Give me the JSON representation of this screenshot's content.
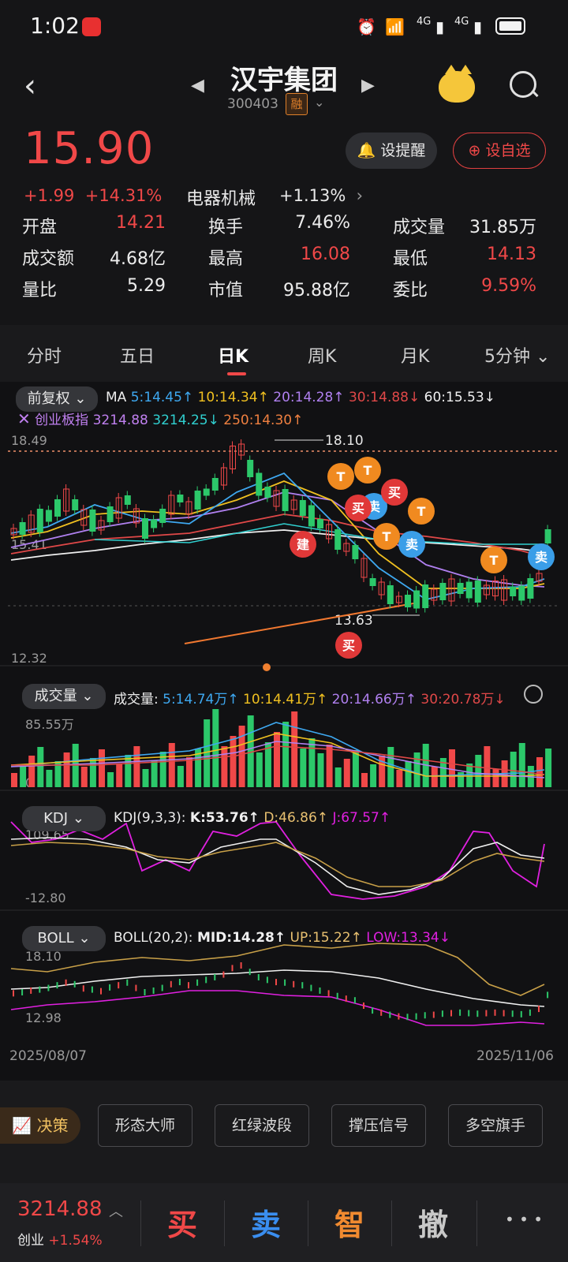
{
  "status_bar": {
    "time": "1:02",
    "network_1": "4G",
    "network_2": "4G"
  },
  "header": {
    "title": "汉宇集团",
    "code": "300403",
    "tag": "融"
  },
  "quote": {
    "price": "15.90",
    "change": "+1.99",
    "change_pct": "+14.31%",
    "sector": "电器机械",
    "sector_change": "+1.13%",
    "remind_label": "设提醒",
    "add_fav_label": "设自选",
    "stats": [
      {
        "label": "开盘",
        "value": "14.21",
        "color": "red"
      },
      {
        "label": "换手",
        "value": "7.46%",
        "color": "white"
      },
      {
        "label": "成交量",
        "value": "31.85万",
        "color": "white"
      },
      {
        "label": "成交额",
        "value": "4.68亿",
        "color": "white"
      },
      {
        "label": "最高",
        "value": "16.08",
        "color": "red"
      },
      {
        "label": "最低",
        "value": "14.13",
        "color": "red"
      },
      {
        "label": "量比",
        "value": "5.29",
        "color": "white"
      },
      {
        "label": "市值",
        "value": "95.88亿",
        "color": "white"
      },
      {
        "label": "委比",
        "value": "9.59%",
        "color": "red"
      }
    ]
  },
  "tabs": [
    "分时",
    "五日",
    "日K",
    "周K",
    "月K",
    "5分钟"
  ],
  "active_tab": "日K",
  "kline": {
    "adjust_label": "前复权",
    "ma_label": "MA",
    "ma": [
      {
        "text": "5:14.45↑",
        "color": "#3ea8f0"
      },
      {
        "text": "10:14.34↑",
        "color": "#f0c020"
      },
      {
        "text": "20:14.28↑",
        "color": "#b080f0"
      },
      {
        "text": "30:14.88↓",
        "color": "#e04848"
      },
      {
        "text": "60:15.53↓",
        "color": "#f0f0f0"
      }
    ],
    "index_label": "创业板指",
    "index_value": "3214.88",
    "index_ma": "3214.25↓",
    "ma250": "250:14.30↑",
    "y_top": "18.49",
    "y_mid": "15.41",
    "y_bottom": "12.32",
    "high_label": "18.10",
    "low_label": "13.63",
    "markers": [
      "建",
      "买",
      "卖",
      "买",
      "卖",
      "卖",
      "买",
      "T",
      "T",
      "T",
      "T",
      "T"
    ]
  },
  "volume": {
    "button": "成交量",
    "title": "成交量:",
    "ma": [
      {
        "text": "5:14.74万↑",
        "color": "#3ea8f0"
      },
      {
        "text": "10:14.41万↑",
        "color": "#f0c020"
      },
      {
        "text": "20:14.66万↑",
        "color": "#b080f0"
      },
      {
        "text": "30:20.78万↓",
        "color": "#e04848"
      }
    ],
    "y_top": "85.55万",
    "y_bottom": "0"
  },
  "kdj": {
    "button": "KDJ",
    "title": "KDJ(9,3,3):",
    "k": "K:53.76↑",
    "d": "D:46.86↑",
    "j": "J:67.57↑",
    "y_top": "109.65",
    "y_bottom": "-12.80"
  },
  "boll": {
    "button": "BOLL",
    "title": "BOLL(20,2):",
    "mid": "MID:14.28↑",
    "up": "UP:15.22↑",
    "low": "LOW:13.34↓",
    "y_top": "18.10",
    "y_bottom": "12.98",
    "date_start": "2025/08/07",
    "date_end": "2025/11/06"
  },
  "decision": {
    "label": "决策",
    "items": [
      "形态大师",
      "红绿波段",
      "撑压信号",
      "多空旗手"
    ]
  },
  "bottom_bar": {
    "index_value": "3214.88",
    "index_name": "创业",
    "index_change": "+1.54%",
    "buy": "买",
    "sell": "卖",
    "smart": "智",
    "cancel": "撤",
    "more": "• • •"
  }
}
